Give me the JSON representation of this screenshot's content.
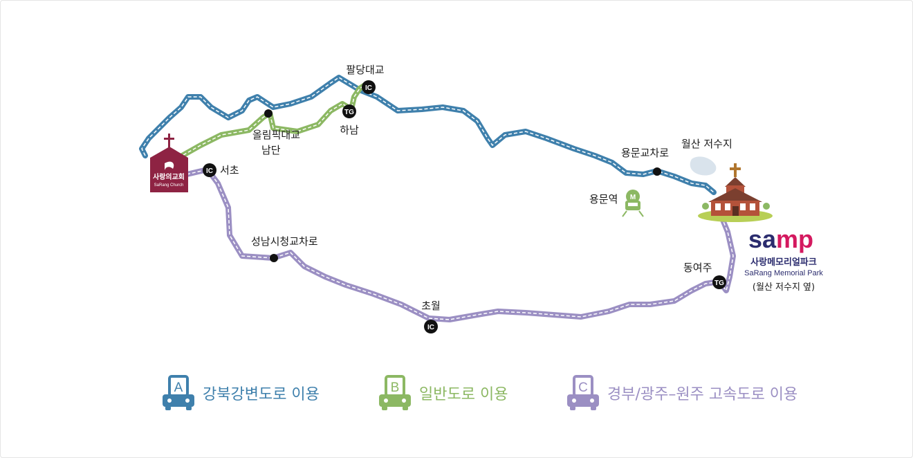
{
  "colors": {
    "route_a": "#3f80ac",
    "route_b": "#8cb863",
    "route_c": "#9b8fc3",
    "church": "#8e2343",
    "samp_navy": "#2b2c6e",
    "samp_pink": "#d4195f"
  },
  "map": {
    "church": {
      "label_ko": "사랑의교회",
      "label_en": "SaRang Church"
    },
    "places": {
      "paldang": "팔당대교",
      "hanam": "하남",
      "olympic_1": "올림픽대교",
      "olympic_2": "남단",
      "seocho": "서초",
      "seongnam": "성남시청교차로",
      "chowol": "초월",
      "yongmun_ic": "용문교차로",
      "yongmun_station": "용문역",
      "wolsan": "월산 저수지",
      "dongyeoju": "동여주"
    },
    "badges": {
      "ic": "IC",
      "tg": "TG",
      "metro": "M"
    },
    "park": {
      "brand": "samp",
      "brand_sa": "sa",
      "brand_mp": "mp",
      "name_ko": "사랑메모리얼파크",
      "name_en": "SaRang Memorial Park",
      "note": "(월산 저수지 옆)"
    }
  },
  "legend": [
    {
      "letter": "A",
      "label": "강북강변도로 이용",
      "color": "#3f80ac"
    },
    {
      "letter": "B",
      "label": "일반도로 이용",
      "color": "#8cb863"
    },
    {
      "letter": "C",
      "label": "경부/광주–원주 고속도로 이용",
      "color": "#9b8fc3"
    }
  ]
}
